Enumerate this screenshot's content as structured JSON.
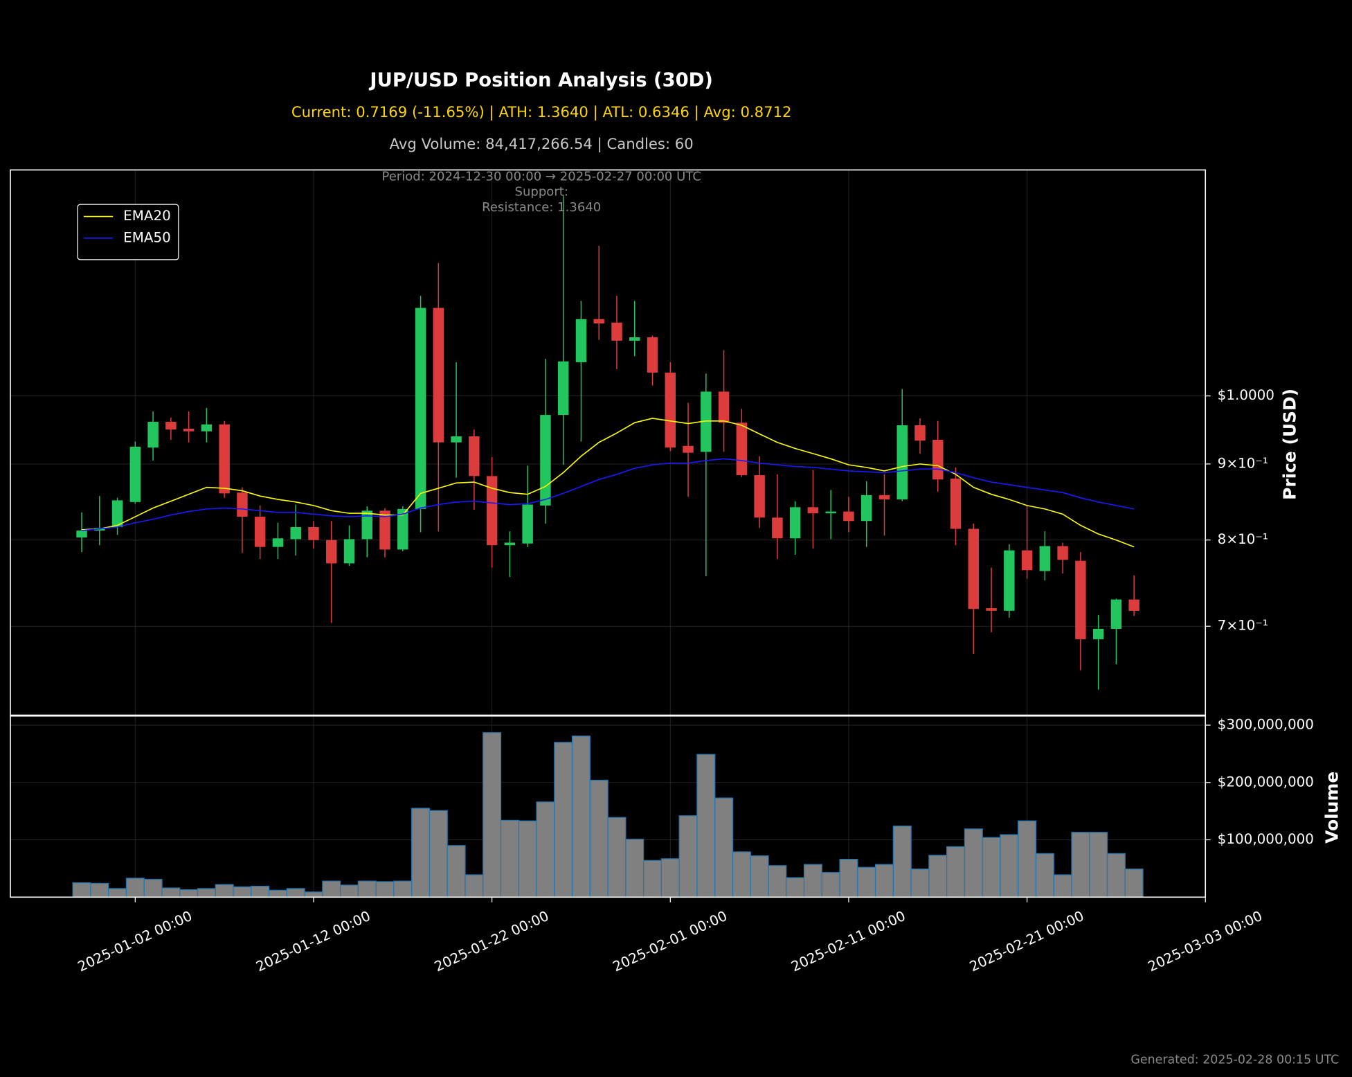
{
  "chart_data": [
    {
      "type": "candlestick",
      "title": "JUP/USD Position Analysis (30D)",
      "subtitle": "Current: 0.7169 (-11.65%) | ATH: 1.3640 | ATL: 0.6346 | Avg: 0.8712",
      "info": "Avg Volume: 84,417,266.54 | Candles: 60",
      "annotations": [
        "Period: 2024-12-30 00:00 → 2025-02-27 00:00 UTC",
        "Support:",
        "Resistance: 1.3640"
      ],
      "footnote": "Generated: 2025-02-28 00:15 UTC",
      "ylabel": "Price (USD)",
      "x": [
        "2024-12-30 00:00",
        "2024-12-31 00:00",
        "2025-01-01 00:00",
        "2025-01-02 00:00",
        "2025-01-03 00:00",
        "2025-01-04 00:00",
        "2025-01-05 00:00",
        "2025-01-06 00:00",
        "2025-01-07 00:00",
        "2025-01-08 00:00",
        "2025-01-09 00:00",
        "2025-01-10 00:00",
        "2025-01-11 00:00",
        "2025-01-12 00:00",
        "2025-01-13 00:00",
        "2025-01-14 00:00",
        "2025-01-15 00:00",
        "2025-01-16 00:00",
        "2025-01-17 00:00",
        "2025-01-18 00:00",
        "2025-01-19 00:00",
        "2025-01-20 00:00",
        "2025-01-21 00:00",
        "2025-01-22 00:00",
        "2025-01-23 00:00",
        "2025-01-24 00:00",
        "2025-01-25 00:00",
        "2025-01-26 00:00",
        "2025-01-27 00:00",
        "2025-01-28 00:00",
        "2025-01-29 00:00",
        "2025-01-30 00:00",
        "2025-01-31 00:00",
        "2025-02-01 00:00",
        "2025-02-02 00:00",
        "2025-02-03 00:00",
        "2025-02-04 00:00",
        "2025-02-05 00:00",
        "2025-02-06 00:00",
        "2025-02-07 00:00",
        "2025-02-08 00:00",
        "2025-02-09 00:00",
        "2025-02-10 00:00",
        "2025-02-11 00:00",
        "2025-02-12 00:00",
        "2025-02-13 00:00",
        "2025-02-14 00:00",
        "2025-02-15 00:00",
        "2025-02-16 00:00",
        "2025-02-17 00:00",
        "2025-02-18 00:00",
        "2025-02-19 00:00",
        "2025-02-20 00:00",
        "2025-02-21 00:00",
        "2025-02-22 00:00",
        "2025-02-23 00:00",
        "2025-02-24 00:00",
        "2025-02-25 00:00",
        "2025-02-26 00:00",
        "2025-02-27 00:00"
      ],
      "open": [
        0.8032,
        0.8118,
        0.8162,
        0.8485,
        0.9231,
        0.9607,
        0.9505,
        0.9467,
        0.9569,
        0.861,
        0.8294,
        0.7915,
        0.8011,
        0.8162,
        0.8,
        0.7716,
        0.8011,
        0.8372,
        0.7883,
        0.8394,
        1.146,
        0.9306,
        0.9393,
        0.8833,
        0.7936,
        0.7957,
        0.8439,
        0.971,
        1.0535,
        1.1263,
        1.1203,
        1.0893,
        1.0951,
        1.0367,
        0.9256,
        0.917,
        1.0067,
        0.9594,
        0.8845,
        0.8283,
        0.8021,
        0.8417,
        0.8338,
        0.8361,
        0.8239,
        0.8576,
        0.8519,
        0.9556,
        0.9343,
        0.8798,
        0.814,
        0.7199,
        0.717,
        0.7873,
        0.7625,
        0.7925,
        0.7747,
        0.6861,
        0.6972,
        0.7296
      ],
      "high": [
        0.835,
        0.8564,
        0.8541,
        0.9318,
        0.9762,
        0.9671,
        0.9762,
        0.9815,
        0.962,
        0.868,
        0.8439,
        0.8217,
        0.8451,
        0.8239,
        0.8239,
        0.8184,
        0.8428,
        0.8406,
        0.8428,
        1.1677,
        1.2286,
        1.0535,
        0.9492,
        0.9097,
        0.8108,
        0.8976,
        1.0591,
        1.364,
        1.1584,
        1.2618,
        1.1677,
        1.1584,
        1.098,
        1.0535,
        0.9894,
        1.0354,
        1.0734,
        0.9802,
        0.9109,
        0.8857,
        0.8496,
        0.8916,
        0.8645,
        0.8553,
        0.8763,
        0.8857,
        1.0107,
        0.9659,
        0.962,
        0.8952,
        0.8206,
        0.7666,
        0.7947,
        0.8439,
        0.8108,
        0.7968,
        0.7852,
        0.7123,
        0.7306,
        0.7574
      ],
      "low": [
        0.7852,
        0.7936,
        0.8064,
        0.8462,
        0.9048,
        0.9343,
        0.9306,
        0.9306,
        0.8541,
        0.7841,
        0.7768,
        0.7768,
        0.781,
        0.7894,
        0.7037,
        0.7686,
        0.7789,
        0.7789,
        0.7862,
        0.8097,
        0.8108,
        0.881,
        0.8383,
        0.7666,
        0.7554,
        0.7915,
        0.8206,
        0.8988,
        0.9318,
        1.0907,
        1.0423,
        1.0634,
        1.0162,
        0.9182,
        0.8553,
        0.7564,
        0.917,
        0.8821,
        0.8151,
        0.7768,
        0.782,
        0.7894,
        0.8011,
        0.8097,
        0.7915,
        0.8054,
        0.8496,
        0.9146,
        0.8622,
        0.7936,
        0.6707,
        0.6935,
        0.7094,
        0.7534,
        0.7514,
        0.7595,
        0.6539,
        0.6346,
        0.66,
        0.7113
      ],
      "close": [
        0.8118,
        0.8151,
        0.8507,
        0.9244,
        0.9607,
        0.9492,
        0.9467,
        0.9569,
        0.8599,
        0.8294,
        0.7915,
        0.8021,
        0.8162,
        0.8,
        0.7716,
        0.8011,
        0.8372,
        0.7883,
        0.8394,
        1.146,
        0.9306,
        0.9393,
        0.8833,
        0.7936,
        0.7968,
        0.8451,
        0.971,
        1.0549,
        1.1263,
        1.1188,
        1.0893,
        1.0951,
        1.0367,
        0.9231,
        0.9158,
        1.0067,
        0.9594,
        0.8845,
        0.8283,
        0.8021,
        0.8417,
        0.8338,
        0.8361,
        0.8239,
        0.8576,
        0.8519,
        0.9556,
        0.9331,
        0.8786,
        0.814,
        0.719,
        0.717,
        0.7873,
        0.7635,
        0.7925,
        0.7758,
        0.6861,
        0.6972,
        0.7296,
        0.7169
      ],
      "up_color": "#22c55e",
      "down_color": "#dc3c3c",
      "series": [
        {
          "name": "EMA20",
          "color": "#ffff00",
          "values": [
            0.8129,
            0.814,
            0.8184,
            0.8294,
            0.8406,
            0.8496,
            0.8587,
            0.868,
            0.8668,
            0.8634,
            0.8564,
            0.8519,
            0.8485,
            0.8439,
            0.8372,
            0.8338,
            0.8338,
            0.8316,
            0.8316,
            0.8599,
            0.8668,
            0.8739,
            0.8751,
            0.8668,
            0.861,
            0.8587,
            0.8692,
            0.888,
            0.9109,
            0.9306,
            0.9442,
            0.9594,
            0.9659,
            0.962,
            0.9581,
            0.962,
            0.962,
            0.9556,
            0.9429,
            0.9306,
            0.9219,
            0.9146,
            0.9072,
            0.8988,
            0.8952,
            0.8904,
            0.8964,
            0.9,
            0.8976,
            0.8857,
            0.868,
            0.8587,
            0.8519,
            0.8439,
            0.8394,
            0.8327,
            0.8184,
            0.8075,
            0.8,
            0.7915
          ]
        },
        {
          "name": "EMA50",
          "color": "#1a1aff",
          "values": [
            0.8118,
            0.814,
            0.8162,
            0.8217,
            0.8261,
            0.8316,
            0.8361,
            0.8394,
            0.8406,
            0.8394,
            0.8372,
            0.835,
            0.835,
            0.8327,
            0.8305,
            0.8294,
            0.8305,
            0.8294,
            0.8327,
            0.8406,
            0.8451,
            0.8485,
            0.8496,
            0.8473,
            0.8451,
            0.8462,
            0.8519,
            0.8599,
            0.8692,
            0.8786,
            0.8857,
            0.894,
            0.8988,
            0.9012,
            0.9012,
            0.9048,
            0.9072,
            0.9048,
            0.9012,
            0.8988,
            0.8964,
            0.8952,
            0.8928,
            0.8904,
            0.8892,
            0.888,
            0.8904,
            0.8928,
            0.8928,
            0.888,
            0.881,
            0.8751,
            0.8716,
            0.868,
            0.8645,
            0.861,
            0.8541,
            0.8485,
            0.8439,
            0.8394
          ]
        }
      ],
      "legend": "upper left",
      "log_y": true,
      "grid": true,
      "xlim": [
        "2024-12-26 00:00",
        "2025-03-03 00:00"
      ],
      "ylim": [
        0.61,
        1.419
      ],
      "yticks": [
        {
          "value": 0.7,
          "label": "7×10⁻¹"
        },
        {
          "value": 0.8,
          "label": "8×10⁻¹"
        },
        {
          "value": 0.9,
          "label": "9×10⁻¹"
        },
        {
          "value": 1,
          "label": "$1.0000"
        }
      ]
    },
    {
      "type": "bar",
      "ylabel": "Volume",
      "values": [
        25000000,
        24000000,
        15000000,
        33000000,
        31000000,
        16000000,
        13000000,
        15000000,
        22000000,
        18000000,
        19000000,
        12000000,
        15000000,
        9000000,
        28000000,
        21000000,
        28000000,
        27000000,
        28000000,
        155000000,
        151000000,
        90000000,
        39000000,
        287000000,
        134000000,
        133000000,
        166000000,
        270000000,
        281000000,
        204000000,
        139000000,
        101000000,
        64000000,
        67000000,
        142000000,
        249000000,
        173000000,
        79000000,
        72000000,
        55000000,
        34000000,
        57000000,
        43000000,
        66000000,
        52000000,
        57000000,
        124000000,
        49000000,
        73000000,
        88000000,
        119000000,
        104000000,
        109000000,
        133000000,
        76000000,
        39000000,
        113000000,
        113000000,
        76000000,
        49000000
      ],
      "color": "#808080",
      "edge_color": "#1f77b4",
      "grid": true,
      "xlim": [
        "2024-12-26 00:00",
        "2025-03-03 00:00"
      ],
      "xticks": [
        "2025-01-02 00:00",
        "2025-01-12 00:00",
        "2025-01-22 00:00",
        "2025-02-01 00:00",
        "2025-02-11 00:00",
        "2025-02-21 00:00",
        "2025-03-03 00:00"
      ],
      "ylim": [
        0,
        316000000
      ],
      "yticks": [
        {
          "value": 100000000,
          "label": "$100,000,000"
        },
        {
          "value": 200000000,
          "label": "$200,000,000"
        },
        {
          "value": 300000000,
          "label": "$300,000,000"
        }
      ]
    }
  ]
}
